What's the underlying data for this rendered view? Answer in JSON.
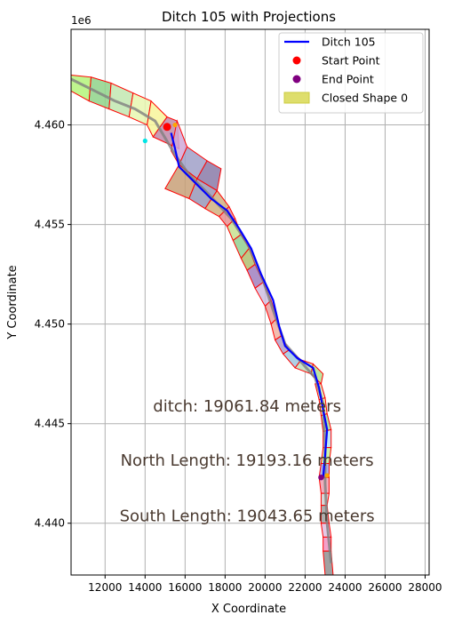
{
  "chart_data": {
    "type": "line",
    "title": "Ditch 105 with Projections",
    "xlabel": "X Coordinate",
    "ylabel": "Y Coordinate",
    "y_offset_label": "1e6",
    "xlim": [
      10300,
      28200
    ],
    "ylim": [
      4437400,
      4464800
    ],
    "x_ticks": [
      12000,
      14000,
      16000,
      18000,
      20000,
      22000,
      24000,
      26000,
      28000
    ],
    "y_ticks": [
      4440000,
      4445000,
      4450000,
      4455000,
      4460000
    ],
    "x_tick_labels": [
      "12000",
      "14000",
      "16000",
      "18000",
      "20000",
      "22000",
      "24000",
      "26000",
      "28000"
    ],
    "y_tick_labels": [
      "4.440",
      "4.445",
      "4.450",
      "4.455",
      "4.460"
    ],
    "grid": true,
    "legend_position": "top-right",
    "legend": [
      {
        "label": "Ditch 105",
        "kind": "line",
        "color": "#0000ff"
      },
      {
        "label": "Start Point",
        "kind": "marker",
        "color": "#ff0000"
      },
      {
        "label": "End Point",
        "kind": "marker",
        "color": "#800080"
      },
      {
        "label": "Closed Shape 0",
        "kind": "patch",
        "color": "#dede6c"
      }
    ],
    "ditch_line": {
      "color": "#0000ff",
      "points": [
        [
          15300,
          4459600
        ],
        [
          15500,
          4458800
        ],
        [
          15700,
          4457900
        ],
        [
          16400,
          4457200
        ],
        [
          17300,
          4456300
        ],
        [
          18100,
          4455700
        ],
        [
          18700,
          4454800
        ],
        [
          19300,
          4453800
        ],
        [
          19800,
          4452500
        ],
        [
          20400,
          4451200
        ],
        [
          20700,
          4449900
        ],
        [
          21000,
          4448900
        ],
        [
          21600,
          4448300
        ],
        [
          22400,
          4447800
        ],
        [
          22700,
          4446800
        ],
        [
          22900,
          4445700
        ],
        [
          23100,
          4444700
        ],
        [
          23000,
          4443400
        ],
        [
          22900,
          4442300
        ]
      ]
    },
    "centerline": {
      "color": "#808080",
      "points": [
        [
          10300,
          4462300
        ],
        [
          11500,
          4461700
        ],
        [
          12500,
          4461200
        ],
        [
          13500,
          4460800
        ],
        [
          14500,
          4460200
        ],
        [
          15500,
          4458500
        ],
        [
          16200,
          4457500
        ],
        [
          17200,
          4456500
        ],
        [
          18300,
          4455300
        ],
        [
          19200,
          4453900
        ],
        [
          19900,
          4452200
        ],
        [
          20500,
          4450400
        ],
        [
          21000,
          4449000
        ],
        [
          21800,
          4448100
        ],
        [
          22500,
          4447300
        ],
        [
          22900,
          4446000
        ],
        [
          23000,
          4444000
        ],
        [
          23000,
          4442000
        ],
        [
          23100,
          4440000
        ],
        [
          23300,
          4438000
        ]
      ]
    },
    "start_point": {
      "x": 15100,
      "y": 4459900,
      "color": "#ff0000"
    },
    "end_point": {
      "x": 22800,
      "y": 4442300,
      "color": "#800080"
    },
    "projection_markers": [
      {
        "x": 15500,
        "y": 4460000,
        "color": "#ffa500"
      },
      {
        "x": 14000,
        "y": 4459200,
        "color": "#00e5e5"
      },
      {
        "x": 23100,
        "y": 4442400,
        "color": "#ffa500"
      },
      {
        "x": 22800,
        "y": 4442300,
        "color": "#00e5e5"
      }
    ],
    "polygon_segments": [
      {
        "color": "#b4f57a",
        "points": [
          [
            10300,
            4462500
          ],
          [
            11300,
            4462400
          ],
          [
            11200,
            4461200
          ],
          [
            10300,
            4461700
          ]
        ]
      },
      {
        "color": "#8fd48a",
        "points": [
          [
            11300,
            4462400
          ],
          [
            12300,
            4462100
          ],
          [
            12200,
            4460800
          ],
          [
            11200,
            4461200
          ]
        ]
      },
      {
        "color": "#c2e8b0",
        "points": [
          [
            12300,
            4462100
          ],
          [
            13400,
            4461600
          ],
          [
            13200,
            4460400
          ],
          [
            12200,
            4460800
          ]
        ]
      },
      {
        "color": "#e8f7b0",
        "points": [
          [
            13400,
            4461600
          ],
          [
            14300,
            4461200
          ],
          [
            14100,
            4460000
          ],
          [
            13200,
            4460400
          ]
        ]
      },
      {
        "color": "#f7f59a",
        "points": [
          [
            14300,
            4461200
          ],
          [
            15100,
            4460400
          ],
          [
            14400,
            4459400
          ],
          [
            14100,
            4460000
          ]
        ]
      },
      {
        "color": "#c08aa8",
        "points": [
          [
            15100,
            4460400
          ],
          [
            15600,
            4460200
          ],
          [
            15700,
            4458800
          ],
          [
            14400,
            4459400
          ]
        ]
      },
      {
        "color": "#d0a8d8",
        "points": [
          [
            15600,
            4460200
          ],
          [
            16100,
            4458900
          ],
          [
            15700,
            4458000
          ],
          [
            15300,
            4458700
          ]
        ]
      },
      {
        "color": "#a0a0c8",
        "points": [
          [
            15700,
            4458000
          ],
          [
            16100,
            4458900
          ],
          [
            17100,
            4458200
          ],
          [
            16600,
            4457300
          ]
        ]
      },
      {
        "color": "#c8a078",
        "points": [
          [
            15700,
            4458000
          ],
          [
            16600,
            4457300
          ],
          [
            16200,
            4456300
          ],
          [
            15000,
            4456800
          ]
        ]
      },
      {
        "color": "#8a7aa8",
        "points": [
          [
            16600,
            4457300
          ],
          [
            17100,
            4458200
          ],
          [
            17800,
            4457800
          ],
          [
            17600,
            4456700
          ]
        ]
      },
      {
        "color": "#9898b8",
        "points": [
          [
            16200,
            4456300
          ],
          [
            16600,
            4457300
          ],
          [
            17600,
            4456700
          ],
          [
            17000,
            4455800
          ]
        ]
      },
      {
        "color": "#d0b080",
        "points": [
          [
            17000,
            4455800
          ],
          [
            17600,
            4456700
          ],
          [
            18200,
            4455900
          ],
          [
            17700,
            4455400
          ]
        ]
      },
      {
        "color": "#e89090",
        "points": [
          [
            17700,
            4455400
          ],
          [
            18200,
            4455900
          ],
          [
            18500,
            4455300
          ],
          [
            18100,
            4454900
          ]
        ]
      },
      {
        "color": "#c8e090",
        "points": [
          [
            18100,
            4454900
          ],
          [
            18500,
            4455300
          ],
          [
            18800,
            4454500
          ],
          [
            18400,
            4454200
          ]
        ]
      },
      {
        "color": "#90d090",
        "points": [
          [
            18400,
            4454200
          ],
          [
            18800,
            4454500
          ],
          [
            19200,
            4453800
          ],
          [
            18800,
            4453300
          ]
        ]
      },
      {
        "color": "#b0c070",
        "points": [
          [
            18800,
            4453300
          ],
          [
            19200,
            4453800
          ],
          [
            19500,
            4453000
          ],
          [
            19100,
            4452700
          ]
        ]
      },
      {
        "color": "#a080c0",
        "points": [
          [
            19100,
            4452700
          ],
          [
            19500,
            4453000
          ],
          [
            19900,
            4452100
          ],
          [
            19500,
            4451800
          ]
        ]
      },
      {
        "color": "#d0c0e0",
        "points": [
          [
            19500,
            4451800
          ],
          [
            19900,
            4452100
          ],
          [
            20300,
            4451200
          ],
          [
            20000,
            4450900
          ]
        ]
      },
      {
        "color": "#e8a0a0",
        "points": [
          [
            20000,
            4450900
          ],
          [
            20300,
            4451200
          ],
          [
            20600,
            4450300
          ],
          [
            20300,
            4450000
          ]
        ]
      },
      {
        "color": "#f0b0a0",
        "points": [
          [
            20300,
            4450000
          ],
          [
            20600,
            4450300
          ],
          [
            20800,
            4449400
          ],
          [
            20500,
            4449200
          ]
        ]
      },
      {
        "color": "#b0a0c8",
        "points": [
          [
            20500,
            4449200
          ],
          [
            20800,
            4449400
          ],
          [
            21200,
            4448700
          ],
          [
            20900,
            4448500
          ]
        ]
      },
      {
        "color": "#a0c8e0",
        "points": [
          [
            20900,
            4448500
          ],
          [
            21200,
            4448700
          ],
          [
            21800,
            4448200
          ],
          [
            21500,
            4447800
          ]
        ]
      },
      {
        "color": "#c0e0c0",
        "points": [
          [
            21500,
            4447800
          ],
          [
            21800,
            4448200
          ],
          [
            22400,
            4448000
          ],
          [
            22300,
            4447500
          ]
        ]
      },
      {
        "color": "#b0e090",
        "points": [
          [
            22300,
            4447500
          ],
          [
            22400,
            4448000
          ],
          [
            22900,
            4447500
          ],
          [
            22800,
            4447000
          ]
        ]
      },
      {
        "color": "#d0e8b0",
        "points": [
          [
            22500,
            4447000
          ],
          [
            22800,
            4447000
          ],
          [
            23000,
            4446300
          ],
          [
            22700,
            4446200
          ]
        ]
      },
      {
        "color": "#f0e8a0",
        "points": [
          [
            22700,
            4446200
          ],
          [
            23000,
            4446300
          ],
          [
            23100,
            4445500
          ],
          [
            22800,
            4445400
          ]
        ]
      },
      {
        "color": "#a0d8a0",
        "points": [
          [
            22800,
            4445400
          ],
          [
            23100,
            4445500
          ],
          [
            23300,
            4444700
          ],
          [
            22900,
            4444600
          ]
        ]
      },
      {
        "color": "#b8e0f0",
        "points": [
          [
            22900,
            4444600
          ],
          [
            23300,
            4444700
          ],
          [
            23300,
            4443800
          ],
          [
            22900,
            4443800
          ]
        ]
      },
      {
        "color": "#c0f0a0",
        "points": [
          [
            22900,
            4443800
          ],
          [
            23300,
            4443800
          ],
          [
            23200,
            4443000
          ],
          [
            22800,
            4443000
          ]
        ]
      },
      {
        "color": "#a0a0e0",
        "points": [
          [
            22800,
            4443000
          ],
          [
            23200,
            4443000
          ],
          [
            23200,
            4442300
          ],
          [
            22700,
            4442300
          ]
        ]
      },
      {
        "color": "#f0a0b0",
        "points": [
          [
            22700,
            4442300
          ],
          [
            23200,
            4442300
          ],
          [
            23200,
            4441500
          ],
          [
            22800,
            4441500
          ]
        ]
      },
      {
        "color": "#d0d0d0",
        "points": [
          [
            22800,
            4441500
          ],
          [
            23200,
            4441500
          ],
          [
            23100,
            4440900
          ],
          [
            22800,
            4440900
          ]
        ]
      },
      {
        "color": "#a0a0a0",
        "points": [
          [
            22800,
            4440900
          ],
          [
            23100,
            4440900
          ],
          [
            23200,
            4440000
          ],
          [
            22800,
            4440000
          ]
        ]
      },
      {
        "color": "#e0c0e0",
        "points": [
          [
            22800,
            4440000
          ],
          [
            23200,
            4440000
          ],
          [
            23300,
            4439300
          ],
          [
            22900,
            4439300
          ]
        ]
      },
      {
        "color": "#f090c0",
        "points": [
          [
            22900,
            4439300
          ],
          [
            23300,
            4439300
          ],
          [
            23300,
            4438600
          ],
          [
            22900,
            4438600
          ]
        ]
      },
      {
        "color": "#909090",
        "points": [
          [
            22900,
            4438600
          ],
          [
            23300,
            4438600
          ],
          [
            23400,
            4437400
          ],
          [
            23000,
            4437400
          ]
        ]
      }
    ],
    "annotations": [
      {
        "text": "ditch: 19061.84 meters",
        "x": 19100,
        "y": 4445600
      },
      {
        "text": "North Length: 19193.16 meters",
        "x": 19100,
        "y": 4442900
      },
      {
        "text": "South Length: 19043.65 meters",
        "x": 19100,
        "y": 4440100
      }
    ]
  }
}
